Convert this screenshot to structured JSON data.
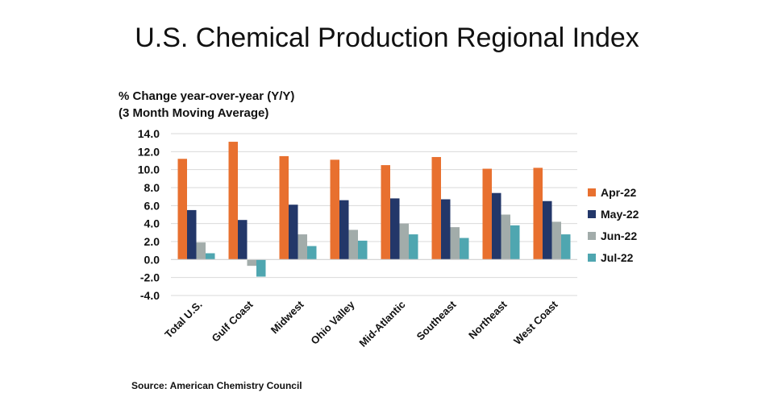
{
  "chart_data": {
    "type": "bar",
    "title": "U.S. Chemical Production Regional Index",
    "ylabel_line1": "% Change year-over-year (Y/Y)",
    "ylabel_line2": "(3 Month Moving Average)",
    "xlabel": "",
    "ylim": [
      -4,
      14
    ],
    "yticks": [
      "14.0",
      "12.0",
      "10.0",
      "8.0",
      "6.0",
      "4.0",
      "2.0",
      "0.0",
      "-2.0",
      "-4.0"
    ],
    "grid": true,
    "legend_position": "right",
    "categories": [
      "Total U.S.",
      "Gulf Coast",
      "Midwest",
      "Ohio Valley",
      "Mid-Atlantic",
      "Southeast",
      "Northeast",
      "West Coast"
    ],
    "series": [
      {
        "name": "Apr-22",
        "color": "#E8702F",
        "values": [
          11.2,
          13.1,
          11.5,
          11.1,
          10.5,
          11.4,
          10.1,
          10.2
        ]
      },
      {
        "name": "May-22",
        "color": "#233769",
        "values": [
          5.5,
          4.4,
          6.1,
          6.6,
          6.8,
          6.7,
          7.4,
          6.5
        ]
      },
      {
        "name": "Jun-22",
        "color": "#A2ACAA",
        "values": [
          1.9,
          -0.7,
          2.8,
          3.3,
          4.0,
          3.6,
          5.0,
          4.2
        ]
      },
      {
        "name": "Jul-22",
        "color": "#4FA6B0",
        "values": [
          0.7,
          -1.9,
          1.5,
          2.1,
          2.8,
          2.4,
          3.8,
          2.8
        ]
      }
    ],
    "source": "Source: American Chemistry Council"
  }
}
